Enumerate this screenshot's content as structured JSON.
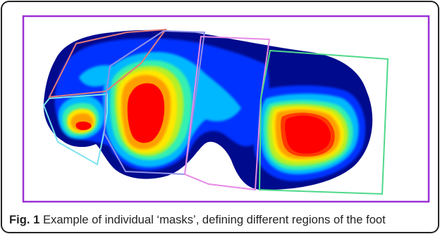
{
  "figure": {
    "caption_label": "Fig. 1",
    "caption_text": "Example of individual ‘masks’, defining different regions of the foot"
  },
  "colors": {
    "frame": "#222222",
    "outer_box": "#9b30d4",
    "mask_toes_upper": "#e37b7b",
    "mask_toes_lower": "#7fe3ef",
    "mask_forefoot": "#8f8fe8",
    "mask_midfoot": "#e68ae6",
    "mask_heel": "#4fd98a",
    "heat_scale": [
      "#000a8c",
      "#0033ff",
      "#00b8ff",
      "#36f0b0",
      "#b7ef28",
      "#ffe800",
      "#ff9e00",
      "#ff3a00",
      "#ff0000"
    ]
  }
}
